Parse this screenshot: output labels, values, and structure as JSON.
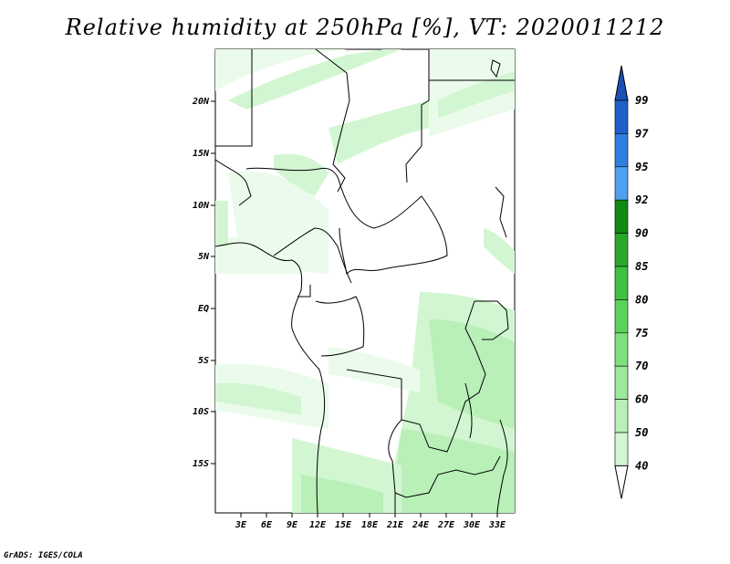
{
  "title": "Relative humidity at 250hPa [%], VT: 2020011212",
  "footer": "GrADS: IGES/COLA",
  "map": {
    "lat_labels": [
      "20N",
      "15N",
      "10N",
      "5N",
      "EQ",
      "5S",
      "10S",
      "15S"
    ],
    "lon_labels": [
      "3E",
      "6E",
      "9E",
      "12E",
      "15E",
      "18E",
      "21E",
      "24E",
      "27E",
      "30E",
      "33E"
    ]
  },
  "colorbar": {
    "levels": [
      "99",
      "97",
      "95",
      "92",
      "90",
      "85",
      "80",
      "75",
      "70",
      "60",
      "50",
      "40"
    ],
    "colors": [
      "#1f5fc8",
      "#2f7fe0",
      "#4ea0f0",
      "#108a10",
      "#2aa82a",
      "#40c040",
      "#5cd25c",
      "#7ee07e",
      "#9ce89c",
      "#b8f0b8",
      "#d2f6d2",
      "#ebfbeb"
    ],
    "top_color": "#1c4fb4"
  }
}
